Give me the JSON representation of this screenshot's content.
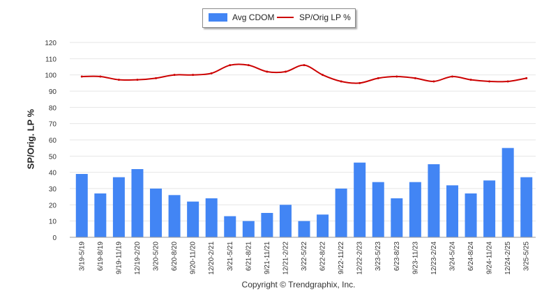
{
  "chart_data": {
    "type": "bar",
    "ylabel": "SP/Orig. LP %",
    "ylim": [
      0,
      120
    ],
    "yticks": [
      0,
      10,
      20,
      30,
      40,
      50,
      60,
      70,
      80,
      90,
      100,
      110,
      120
    ],
    "grid": true,
    "legend_position": "top-center",
    "categories": [
      "3/19-5/19",
      "6/19-8/19",
      "9/19-11/19",
      "12/19-2/20",
      "3/20-5/20",
      "6/20-8/20",
      "9/20-11/20",
      "12/20-2/21",
      "3/21-5/21",
      "6/21-8/21",
      "9/21-11/21",
      "12/21-2/22",
      "3/22-5/22",
      "6/22-8/22",
      "9/22-11/22",
      "12/22-2/23",
      "3/23-5/23",
      "6/23-8/23",
      "9/23-11/23",
      "12/23-2/24",
      "3/24-5/24",
      "6/24-8/24",
      "9/24-11/24",
      "12/24-2/25",
      "3/25-5/25"
    ],
    "series": [
      {
        "name": "Avg CDOM",
        "type": "bar",
        "color": "#4285f4",
        "values": [
          39,
          27,
          37,
          42,
          30,
          26,
          22,
          24,
          13,
          10,
          15,
          20,
          10,
          14,
          30,
          46,
          34,
          24,
          34,
          45,
          32,
          27,
          35,
          55,
          37
        ]
      },
      {
        "name": "SP/Orig LP %",
        "type": "line",
        "color": "#cc0000",
        "values": [
          99,
          99,
          97,
          97,
          98,
          100,
          100,
          101,
          106,
          106,
          102,
          102,
          106,
          100,
          96,
          95,
          98,
          99,
          98,
          96,
          99,
          97,
          96,
          96,
          98
        ]
      }
    ]
  },
  "footer": {
    "copyright": "Copyright © Trendgraphix, Inc."
  }
}
